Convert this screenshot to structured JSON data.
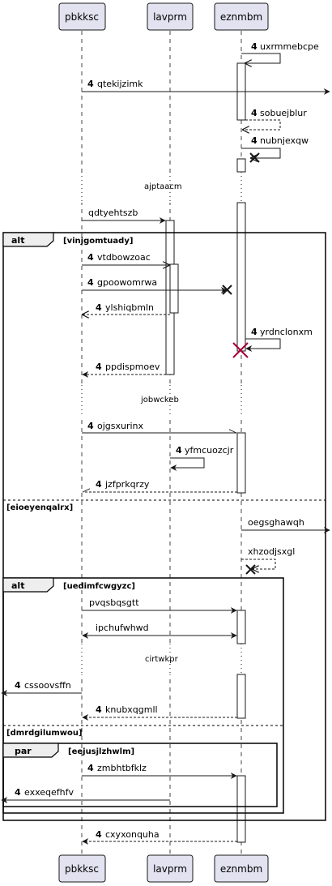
{
  "participants": [
    "pbkksc",
    "lavprm",
    "eznmbm"
  ],
  "colors": {
    "participant_fill": "#e2e2f0",
    "participant_stroke": "#181818",
    "line": "#181818",
    "activation_fill": "#ffffff",
    "destroy": "#a80036"
  },
  "messages": [
    {
      "num": "4",
      "text": "uxrmmebcpe"
    },
    {
      "num": "4",
      "text": "qtekijzimk"
    },
    {
      "num": "4",
      "text": "sobuejblur"
    },
    {
      "num": "4",
      "text": "nubnjexqw"
    },
    {
      "num": "",
      "text": "qdtyehtszb"
    },
    {
      "num": "4",
      "text": "vtdbowzoac"
    },
    {
      "num": "4",
      "text": "gpoowomrwa"
    },
    {
      "num": "4",
      "text": "ylshiqbmln"
    },
    {
      "num": "4",
      "text": "yrdnclonxm"
    },
    {
      "num": "4",
      "text": "ppdispmoev"
    },
    {
      "num": "4",
      "text": "ojgsxurinx"
    },
    {
      "num": "4",
      "text": "yfmcuozcjr"
    },
    {
      "num": "4",
      "text": "jzfprkqrzy"
    },
    {
      "num": "",
      "text": "oegsghawqh"
    },
    {
      "num": "",
      "text": "xhzodjsxgl"
    },
    {
      "num": "",
      "text": "pvqsbqsgtt"
    },
    {
      "num": "",
      "text": "ipchufwhwd"
    },
    {
      "num": "4",
      "text": "cssoovsffn"
    },
    {
      "num": "4",
      "text": "knubxqgmll"
    },
    {
      "num": "4",
      "text": "zmbhtbfklz"
    },
    {
      "num": "4",
      "text": "exxeqefhfv"
    },
    {
      "num": "4",
      "text": "cxyxonquha"
    }
  ],
  "delays": [
    "ajptaacm",
    "jobwckeb",
    "cirtwkpr"
  ],
  "fragments": [
    {
      "keyword": "alt",
      "guard": "[vinjgomtuady]"
    },
    {
      "keyword": "",
      "guard": "[eioeyenqalrx]"
    },
    {
      "keyword": "alt",
      "guard": "[uedimfcwgyzc]"
    },
    {
      "keyword": "",
      "guard": "[dmrdgilumwou]"
    },
    {
      "keyword": "par",
      "guard": "[eejusjlzhwlm]"
    }
  ]
}
